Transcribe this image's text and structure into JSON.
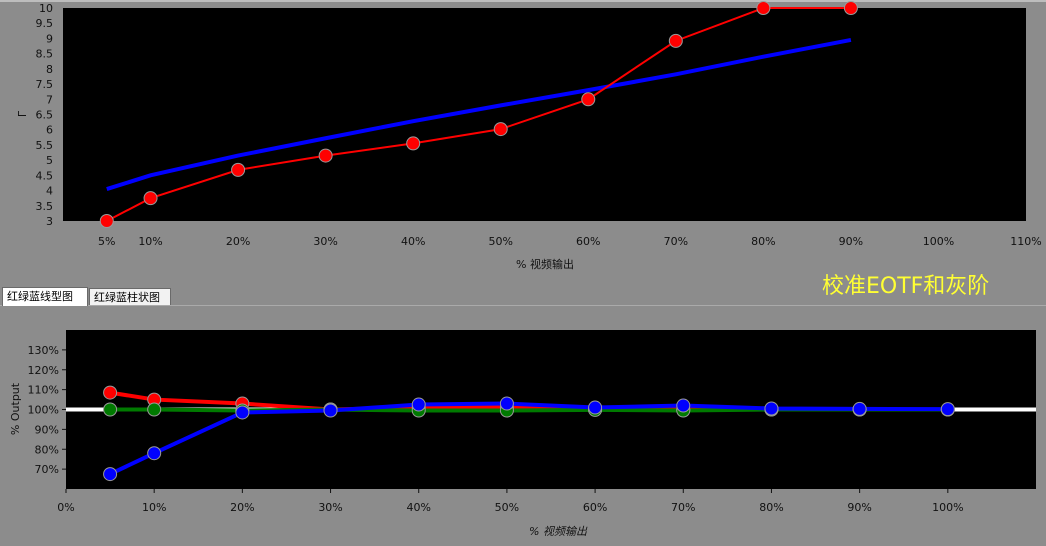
{
  "overlay_title": "校准EOTF和灰阶",
  "tabs": [
    {
      "label": "红绿蓝线型图",
      "active": true
    },
    {
      "label": "红绿蓝柱状图",
      "active": false
    }
  ],
  "colors": {
    "plot_bg": "#000000",
    "red": "#ff0000",
    "green": "#007a00",
    "blue": "#0000ff",
    "target": "#0000ff",
    "reference": "#ffffff"
  },
  "chart_data": [
    {
      "type": "line",
      "xlabel": "% 视频输出",
      "ylabel": "Γ",
      "xlim": [
        0,
        110
      ],
      "ylim": [
        3,
        10
      ],
      "x_ticks": [
        5,
        10,
        20,
        30,
        40,
        50,
        60,
        70,
        80,
        90,
        100,
        110
      ],
      "x_tick_labels": [
        "5%",
        "10%",
        "20%",
        "30%",
        "40%",
        "50%",
        "60%",
        "70%",
        "80%",
        "90%",
        "100%",
        "110%"
      ],
      "y_ticks": [
        3,
        3.5,
        4,
        4.5,
        5,
        5.5,
        6,
        6.5,
        7,
        7.5,
        8,
        8.5,
        9,
        9.5,
        10
      ],
      "y_tick_labels": [
        "3",
        "3.5",
        "4",
        "4.5",
        "5",
        "5.5",
        "6",
        "6.5",
        "7",
        "7.5",
        "8",
        "8.5",
        "9",
        "9.5",
        "10"
      ],
      "series": [
        {
          "role": "target",
          "x": [
            5,
            10,
            20,
            30,
            40,
            50,
            60,
            70,
            80,
            90
          ],
          "values": [
            4.05,
            4.5,
            5.15,
            5.72,
            6.28,
            6.8,
            7.3,
            7.82,
            8.4,
            8.95
          ]
        },
        {
          "role": "measured",
          "x": [
            5,
            10,
            20,
            30,
            40,
            50,
            60,
            70,
            80,
            90
          ],
          "values": [
            3.0,
            3.75,
            4.68,
            5.15,
            5.55,
            6.02,
            7.0,
            8.92,
            10.0,
            10.0
          ]
        }
      ]
    },
    {
      "type": "line",
      "xlabel": "% 视频输出",
      "ylabel": "% Output",
      "xlim": [
        0,
        110
      ],
      "ylim": [
        60,
        140
      ],
      "x_ticks": [
        0,
        10,
        20,
        30,
        40,
        50,
        60,
        70,
        80,
        90,
        100
      ],
      "x_tick_labels": [
        "0%",
        "10%",
        "20%",
        "30%",
        "40%",
        "50%",
        "60%",
        "70%",
        "80%",
        "90%",
        "100%"
      ],
      "y_ticks": [
        70,
        80,
        90,
        100,
        110,
        120,
        130
      ],
      "y_tick_labels": [
        "70%",
        "80%",
        "90%",
        "100%",
        "110%",
        "120%",
        "130%"
      ],
      "reference": 100,
      "x": [
        5,
        10,
        20,
        30,
        40,
        50,
        60,
        70,
        80,
        90,
        100
      ],
      "series": [
        {
          "role": "red",
          "values": [
            108.5,
            105,
            103,
            100,
            101,
            101,
            100,
            100,
            100,
            100,
            100
          ]
        },
        {
          "role": "green",
          "values": [
            100,
            100,
            99.5,
            100,
            99.5,
            99.5,
            99.8,
            99.5,
            100,
            100,
            100
          ]
        },
        {
          "role": "blue",
          "values": [
            67.5,
            78,
            98.5,
            99.5,
            102.5,
            103,
            101,
            102,
            100.5,
            100.3,
            100.2
          ]
        }
      ]
    }
  ]
}
